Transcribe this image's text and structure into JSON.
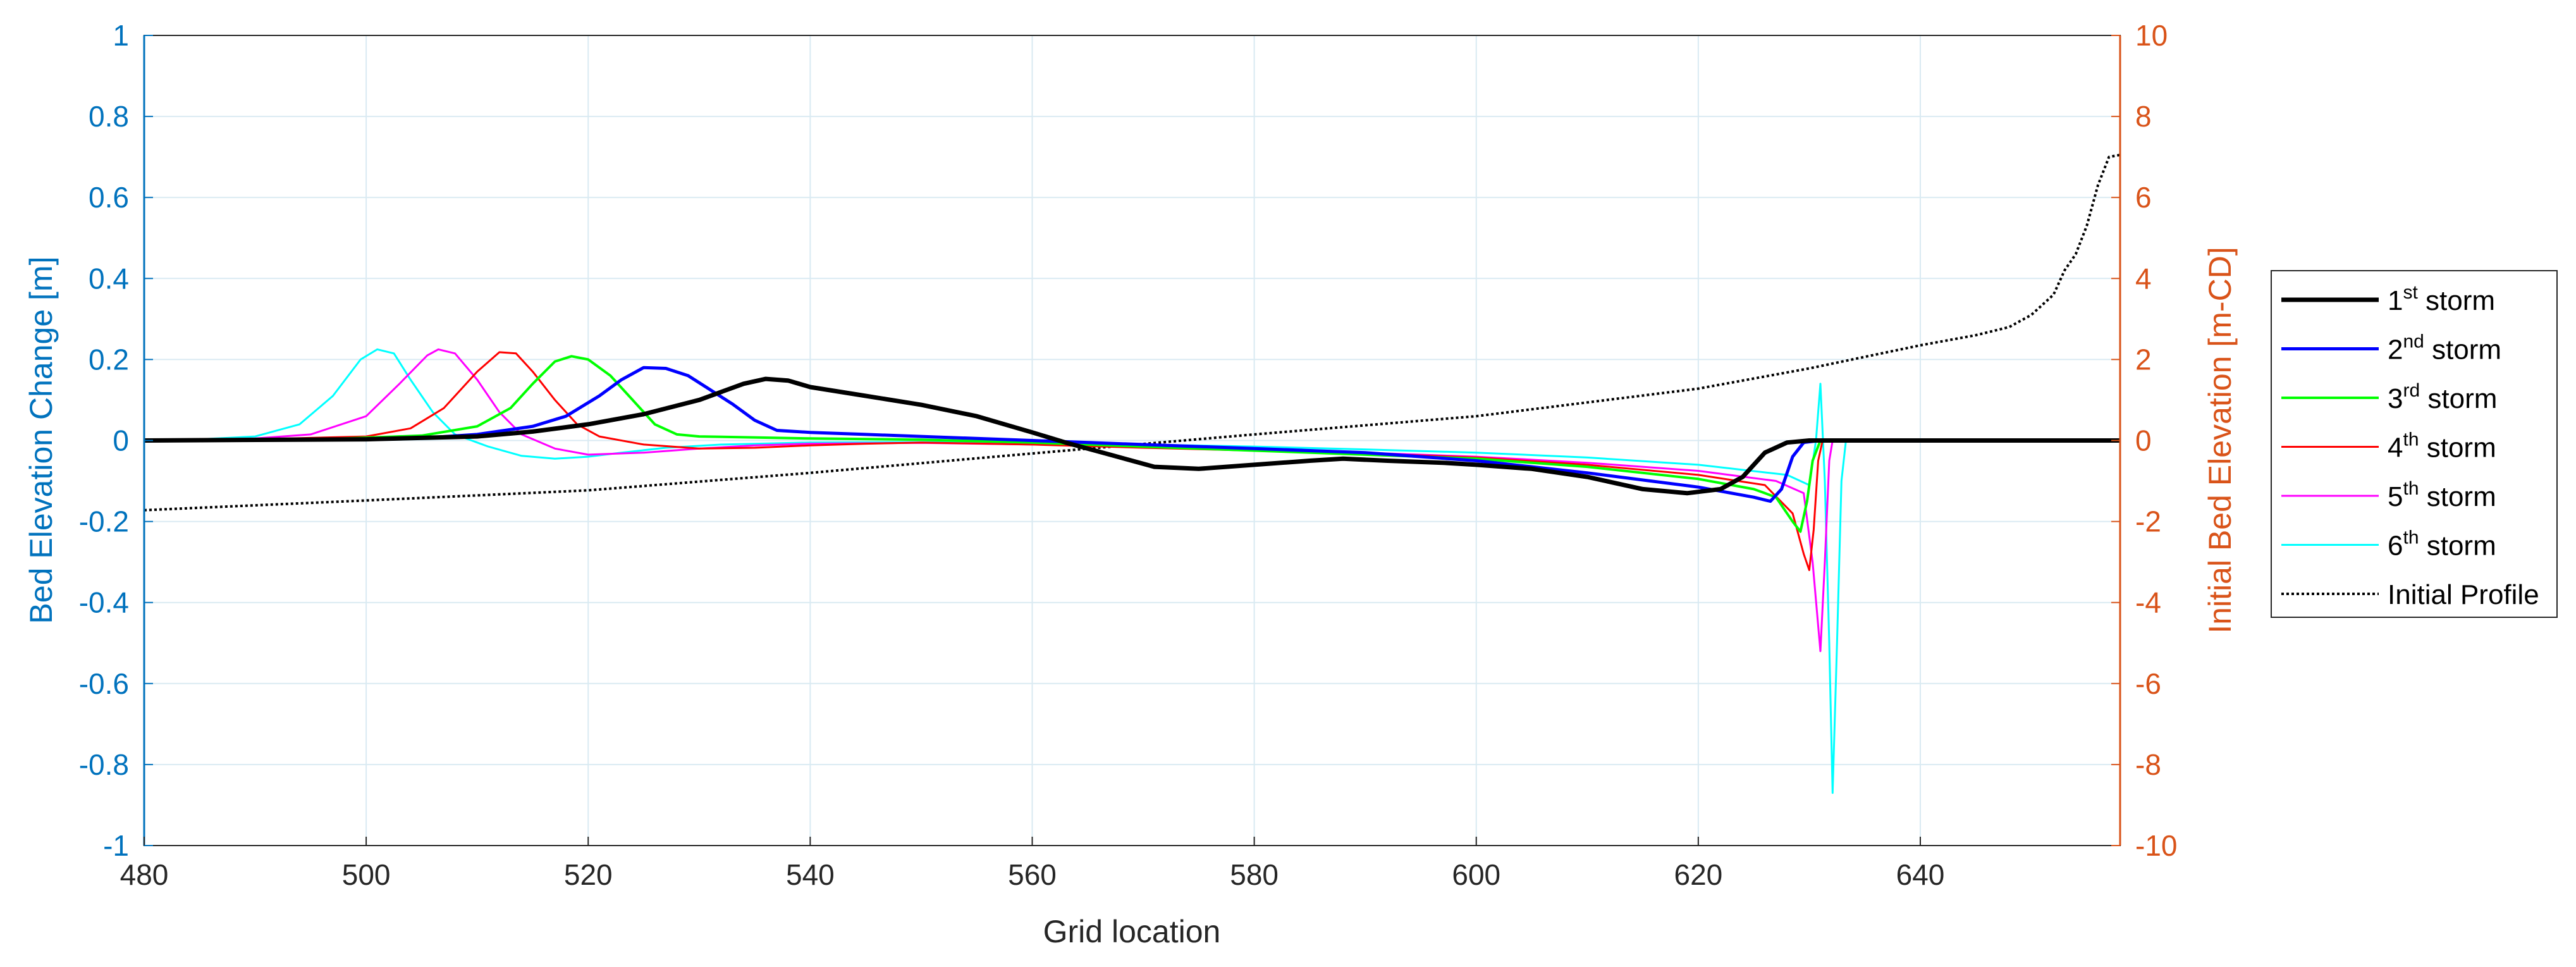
{
  "chart_data": {
    "type": "line",
    "xlabel": "Grid location",
    "ylabel_left": "Bed Elevation Change [m]",
    "ylabel_right": "Initial Bed Elevation [m-CD]",
    "xlim": [
      480,
      658
    ],
    "ylim_left": [
      -1,
      1
    ],
    "ylim_right": [
      -10,
      10
    ],
    "x_ticks": [
      "480",
      "500",
      "520",
      "540",
      "560",
      "580",
      "600",
      "620",
      "640"
    ],
    "y_ticks_left": [
      "-1",
      "-0.8",
      "-0.6",
      "-0.4",
      "-0.2",
      "0",
      "0.2",
      "0.4",
      "0.6",
      "0.8",
      "1"
    ],
    "y_ticks_right": [
      "-10",
      "-8",
      "-6",
      "-4",
      "-2",
      "0",
      "2",
      "4",
      "6",
      "8",
      "10"
    ],
    "grid": true,
    "legend_position": "outside-right",
    "colors": {
      "left_axis": "#0072BD",
      "right_axis": "#D95319",
      "grid": "#D9EAF2"
    },
    "series": [
      {
        "name": "1st storm",
        "name_base": "1",
        "name_sup": "st",
        "name_rest": " storm",
        "color": "#000000",
        "width": 7,
        "dash": "",
        "axis": "left",
        "points": [
          [
            480,
            0
          ],
          [
            500,
            0.003
          ],
          [
            510,
            0.01
          ],
          [
            515,
            0.022
          ],
          [
            520,
            0.04
          ],
          [
            525,
            0.065
          ],
          [
            530,
            0.1
          ],
          [
            534,
            0.14
          ],
          [
            536,
            0.152
          ],
          [
            538,
            0.148
          ],
          [
            540,
            0.132
          ],
          [
            545,
            0.11
          ],
          [
            550,
            0.088
          ],
          [
            555,
            0.06
          ],
          [
            560,
            0.02
          ],
          [
            563,
            -0.005
          ],
          [
            567,
            -0.035
          ],
          [
            571,
            -0.065
          ],
          [
            575,
            -0.07
          ],
          [
            580,
            -0.06
          ],
          [
            585,
            -0.05
          ],
          [
            588,
            -0.045
          ],
          [
            592,
            -0.05
          ],
          [
            597,
            -0.055
          ],
          [
            600,
            -0.06
          ],
          [
            605,
            -0.07
          ],
          [
            610,
            -0.09
          ],
          [
            615,
            -0.12
          ],
          [
            619,
            -0.13
          ],
          [
            622,
            -0.12
          ],
          [
            624,
            -0.09
          ],
          [
            626,
            -0.03
          ],
          [
            628,
            -0.005
          ],
          [
            630,
            0
          ],
          [
            658,
            0
          ]
        ]
      },
      {
        "name": "2nd storm",
        "name_base": "2",
        "name_sup": "nd",
        "name_rest": " storm",
        "color": "#0000FF",
        "width": 5,
        "dash": "",
        "axis": "left",
        "points": [
          [
            480,
            0
          ],
          [
            500,
            0.002
          ],
          [
            505,
            0.006
          ],
          [
            510,
            0.015
          ],
          [
            515,
            0.035
          ],
          [
            518,
            0.06
          ],
          [
            521,
            0.11
          ],
          [
            523,
            0.15
          ],
          [
            525,
            0.18
          ],
          [
            527,
            0.178
          ],
          [
            529,
            0.16
          ],
          [
            531,
            0.125
          ],
          [
            533,
            0.09
          ],
          [
            535,
            0.05
          ],
          [
            537,
            0.025
          ],
          [
            540,
            0.02
          ],
          [
            545,
            0.015
          ],
          [
            550,
            0.01
          ],
          [
            560,
            0
          ],
          [
            570,
            -0.01
          ],
          [
            580,
            -0.02
          ],
          [
            590,
            -0.03
          ],
          [
            600,
            -0.05
          ],
          [
            610,
            -0.08
          ],
          [
            620,
            -0.115
          ],
          [
            625,
            -0.14
          ],
          [
            626.5,
            -0.15
          ],
          [
            627.5,
            -0.12
          ],
          [
            628.5,
            -0.04
          ],
          [
            629.5,
            -0.005
          ],
          [
            631,
            0
          ],
          [
            658,
            0
          ]
        ]
      },
      {
        "name": "3rd storm",
        "name_base": "3",
        "name_sup": "rd",
        "name_rest": " storm",
        "color": "#00FF00",
        "width": 4,
        "dash": "",
        "axis": "left",
        "points": [
          [
            480,
            0
          ],
          [
            495,
            0.002
          ],
          [
            505,
            0.012
          ],
          [
            510,
            0.035
          ],
          [
            513,
            0.08
          ],
          [
            515,
            0.14
          ],
          [
            517,
            0.195
          ],
          [
            518.5,
            0.208
          ],
          [
            520,
            0.2
          ],
          [
            522,
            0.16
          ],
          [
            524,
            0.1
          ],
          [
            526,
            0.04
          ],
          [
            528,
            0.015
          ],
          [
            530,
            0.01
          ],
          [
            540,
            0.005
          ],
          [
            550,
            0.002
          ],
          [
            560,
            -0.005
          ],
          [
            570,
            -0.015
          ],
          [
            580,
            -0.025
          ],
          [
            590,
            -0.035
          ],
          [
            600,
            -0.045
          ],
          [
            610,
            -0.065
          ],
          [
            620,
            -0.095
          ],
          [
            625,
            -0.12
          ],
          [
            627,
            -0.14
          ],
          [
            628.5,
            -0.2
          ],
          [
            629.2,
            -0.225
          ],
          [
            629.8,
            -0.15
          ],
          [
            630.3,
            -0.05
          ],
          [
            631,
            0
          ],
          [
            658,
            0
          ]
        ]
      },
      {
        "name": "4th storm",
        "name_base": "4",
        "name_sup": "th",
        "name_rest": " storm",
        "color": "#FF0000",
        "width": 3,
        "dash": "",
        "axis": "left",
        "points": [
          [
            480,
            0
          ],
          [
            490,
            0.003
          ],
          [
            500,
            0.01
          ],
          [
            504,
            0.03
          ],
          [
            507,
            0.08
          ],
          [
            510,
            0.17
          ],
          [
            512,
            0.218
          ],
          [
            513.5,
            0.215
          ],
          [
            515,
            0.17
          ],
          [
            517,
            0.1
          ],
          [
            519,
            0.04
          ],
          [
            521,
            0.01
          ],
          [
            525,
            -0.01
          ],
          [
            530,
            -0.02
          ],
          [
            535,
            -0.018
          ],
          [
            540,
            -0.012
          ],
          [
            545,
            -0.008
          ],
          [
            550,
            -0.005
          ],
          [
            560,
            -0.01
          ],
          [
            570,
            -0.018
          ],
          [
            580,
            -0.025
          ],
          [
            590,
            -0.032
          ],
          [
            600,
            -0.042
          ],
          [
            610,
            -0.06
          ],
          [
            620,
            -0.085
          ],
          [
            626,
            -0.11
          ],
          [
            628.5,
            -0.18
          ],
          [
            629.5,
            -0.28
          ],
          [
            630,
            -0.32
          ],
          [
            630.4,
            -0.22
          ],
          [
            630.8,
            -0.05
          ],
          [
            631.2,
            0
          ],
          [
            658,
            0
          ]
        ]
      },
      {
        "name": "5th storm",
        "name_base": "5",
        "name_sup": "th",
        "name_rest": " storm",
        "color": "#FF00FF",
        "width": 3,
        "dash": "",
        "axis": "left",
        "points": [
          [
            480,
            0
          ],
          [
            490,
            0.005
          ],
          [
            495,
            0.015
          ],
          [
            500,
            0.06
          ],
          [
            503,
            0.14
          ],
          [
            505.5,
            0.21
          ],
          [
            506.5,
            0.225
          ],
          [
            508,
            0.215
          ],
          [
            510,
            0.15
          ],
          [
            512,
            0.07
          ],
          [
            514,
            0.015
          ],
          [
            517,
            -0.02
          ],
          [
            520,
            -0.035
          ],
          [
            525,
            -0.03
          ],
          [
            530,
            -0.02
          ],
          [
            535,
            -0.012
          ],
          [
            540,
            -0.008
          ],
          [
            550,
            -0.006
          ],
          [
            560,
            -0.01
          ],
          [
            570,
            -0.015
          ],
          [
            580,
            -0.022
          ],
          [
            590,
            -0.03
          ],
          [
            600,
            -0.04
          ],
          [
            610,
            -0.055
          ],
          [
            620,
            -0.075
          ],
          [
            627,
            -0.1
          ],
          [
            629.5,
            -0.13
          ],
          [
            630.3,
            -0.3
          ],
          [
            631,
            -0.52
          ],
          [
            631.4,
            -0.3
          ],
          [
            631.8,
            -0.05
          ],
          [
            632.1,
            0
          ],
          [
            658,
            0
          ]
        ]
      },
      {
        "name": "6th storm",
        "name_base": "6",
        "name_sup": "th",
        "name_rest": " storm",
        "color": "#00FFFF",
        "width": 3,
        "dash": "",
        "axis": "left",
        "points": [
          [
            480,
            0
          ],
          [
            485,
            0.003
          ],
          [
            490,
            0.01
          ],
          [
            494,
            0.04
          ],
          [
            497,
            0.11
          ],
          [
            499.5,
            0.2
          ],
          [
            501,
            0.225
          ],
          [
            502.5,
            0.215
          ],
          [
            504,
            0.15
          ],
          [
            506,
            0.07
          ],
          [
            508,
            0.015
          ],
          [
            511,
            -0.015
          ],
          [
            514,
            -0.038
          ],
          [
            517,
            -0.045
          ],
          [
            520,
            -0.04
          ],
          [
            523,
            -0.03
          ],
          [
            527,
            -0.018
          ],
          [
            532,
            -0.01
          ],
          [
            540,
            -0.005
          ],
          [
            550,
            -0.004
          ],
          [
            560,
            -0.005
          ],
          [
            570,
            -0.01
          ],
          [
            580,
            -0.015
          ],
          [
            590,
            -0.022
          ],
          [
            600,
            -0.03
          ],
          [
            610,
            -0.042
          ],
          [
            620,
            -0.06
          ],
          [
            628,
            -0.085
          ],
          [
            630,
            -0.11
          ],
          [
            630.6,
            0
          ],
          [
            631,
            0.14
          ],
          [
            631.4,
            -0.1
          ],
          [
            631.8,
            -0.5
          ],
          [
            632.1,
            -0.87
          ],
          [
            632.5,
            -0.5
          ],
          [
            632.9,
            -0.1
          ],
          [
            633.3,
            0
          ],
          [
            658,
            0
          ]
        ]
      },
      {
        "name": "Initial Profile",
        "name_base": "Initial Profile",
        "name_sup": "",
        "name_rest": "",
        "color": "#000000",
        "width": 4,
        "dash": "4,4",
        "axis": "right",
        "points": [
          [
            480,
            -1.72
          ],
          [
            500,
            -1.48
          ],
          [
            520,
            -1.23
          ],
          [
            540,
            -0.8
          ],
          [
            560,
            -0.32
          ],
          [
            580,
            0.15
          ],
          [
            600,
            0.6
          ],
          [
            620,
            1.28
          ],
          [
            630,
            1.78
          ],
          [
            640,
            2.35
          ],
          [
            645,
            2.6
          ],
          [
            648,
            2.8
          ],
          [
            650,
            3.1
          ],
          [
            652,
            3.6
          ],
          [
            653,
            4.2
          ],
          [
            654,
            4.6
          ],
          [
            655,
            5.3
          ],
          [
            656,
            6.3
          ],
          [
            657,
            7.0
          ],
          [
            658,
            7.05
          ]
        ]
      }
    ]
  }
}
